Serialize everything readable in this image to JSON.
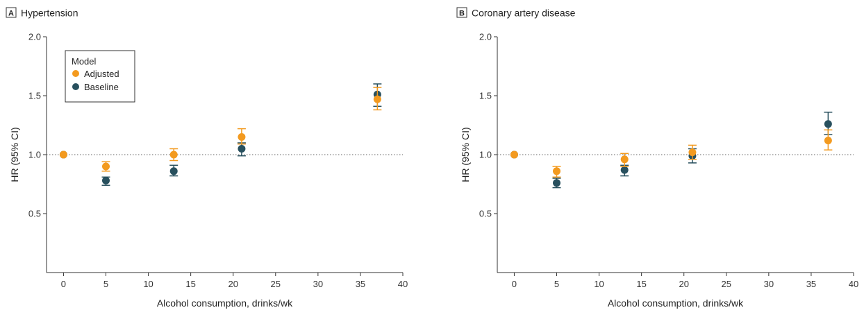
{
  "colors": {
    "adjusted": "#f39a1f",
    "baseline": "#28505e",
    "axis": "#333333",
    "refline": "#666666"
  },
  "chart_data": [
    {
      "type": "scatter",
      "panel": "A",
      "title": "Hypertension",
      "xlabel": "Alcohol consumption, drinks/wk",
      "ylabel": "HR (95% CI)",
      "xlim": [
        -2,
        40
      ],
      "ylim": [
        0,
        2.0
      ],
      "xticks": [
        0,
        5,
        10,
        15,
        20,
        25,
        30,
        35,
        40
      ],
      "yticks": [
        0.5,
        1.0,
        1.5,
        2.0
      ],
      "yticklabels": [
        "0.5",
        "1.0",
        "1.5",
        "2.0"
      ],
      "reference_line": 1.0,
      "legend": {
        "title": "Model",
        "position": "top-left"
      },
      "series": [
        {
          "name": "Adjusted",
          "color": "#f39a1f",
          "x": [
            0,
            5,
            13,
            21,
            37
          ],
          "y": [
            1.0,
            0.9,
            1.0,
            1.15,
            1.47
          ],
          "lower": [
            1.0,
            0.86,
            0.95,
            1.09,
            1.38
          ],
          "upper": [
            1.0,
            0.94,
            1.05,
            1.22,
            1.57
          ]
        },
        {
          "name": "Baseline",
          "color": "#28505e",
          "x": [
            0,
            5,
            13,
            21,
            37
          ],
          "y": [
            1.0,
            0.78,
            0.86,
            1.05,
            1.51
          ],
          "lower": [
            1.0,
            0.74,
            0.82,
            0.99,
            1.41
          ],
          "upper": [
            1.0,
            0.81,
            0.91,
            1.1,
            1.6
          ]
        }
      ]
    },
    {
      "type": "scatter",
      "panel": "B",
      "title": "Coronary artery disease",
      "xlabel": "Alcohol consumption, drinks/wk",
      "ylabel": "HR (95% CI)",
      "xlim": [
        -2,
        40
      ],
      "ylim": [
        0,
        2.0
      ],
      "xticks": [
        0,
        5,
        10,
        15,
        20,
        25,
        30,
        35,
        40
      ],
      "yticks": [
        0.5,
        1.0,
        1.5,
        2.0
      ],
      "yticklabels": [
        "0.5",
        "1.0",
        "1.5",
        "2.0"
      ],
      "reference_line": 1.0,
      "series": [
        {
          "name": "Adjusted",
          "color": "#f39a1f",
          "x": [
            0,
            5,
            13,
            21,
            37
          ],
          "y": [
            1.0,
            0.86,
            0.96,
            1.02,
            1.12
          ],
          "lower": [
            1.0,
            0.81,
            0.9,
            0.96,
            1.04
          ],
          "upper": [
            1.0,
            0.9,
            1.01,
            1.08,
            1.21
          ]
        },
        {
          "name": "Baseline",
          "color": "#28505e",
          "x": [
            0,
            5,
            13,
            21,
            37
          ],
          "y": [
            1.0,
            0.76,
            0.87,
            0.99,
            1.26
          ],
          "lower": [
            1.0,
            0.72,
            0.82,
            0.93,
            1.17
          ],
          "upper": [
            1.0,
            0.8,
            0.91,
            1.05,
            1.36
          ]
        }
      ]
    }
  ]
}
